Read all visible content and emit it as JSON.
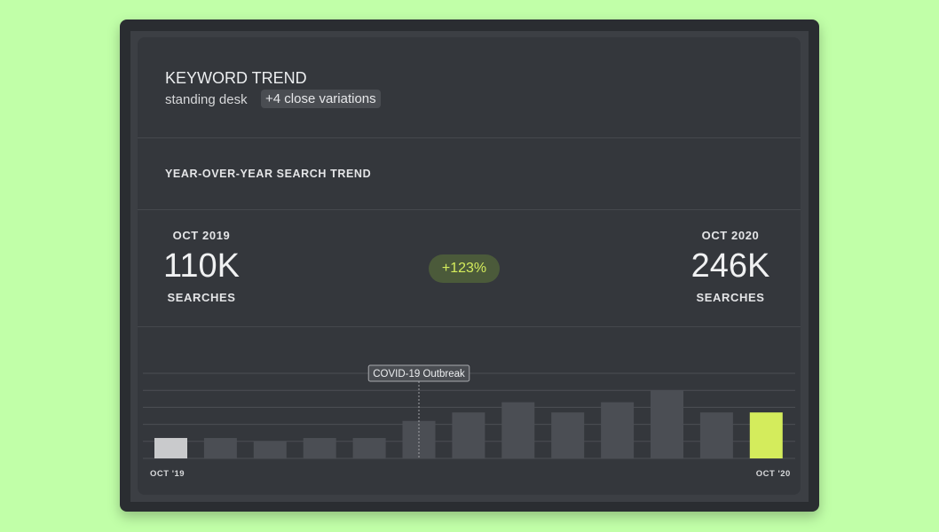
{
  "header": {
    "title": "KEYWORD TREND",
    "keyword": "standing desk",
    "variations": "+4 close variations"
  },
  "section_title": "YEAR-OVER-YEAR SEARCH TREND",
  "comparison": {
    "left": {
      "period": "OCT 2019",
      "value": "110K",
      "unit": "SEARCHES"
    },
    "change": "+123%",
    "right": {
      "period": "OCT 2020",
      "value": "246K",
      "unit": "SEARCHES"
    }
  },
  "chart_data": {
    "type": "bar",
    "categories": [
      "OCT '19",
      null,
      null,
      null,
      null,
      null,
      null,
      null,
      null,
      null,
      null,
      null,
      "OCT '20"
    ],
    "values": [
      1.2,
      1.2,
      1.0,
      1.2,
      1.2,
      2.2,
      2.7,
      3.3,
      2.7,
      3.3,
      4.0,
      2.7,
      2.7
    ],
    "colors": [
      "#c9cacc",
      "#4b4e54",
      "#4b4e54",
      "#4b4e54",
      "#4b4e54",
      "#4b4e54",
      "#4b4e54",
      "#4b4e54",
      "#4b4e54",
      "#4b4e54",
      "#4b4e54",
      "#4b4e54",
      "#d4ec5c"
    ],
    "ylim": [
      0,
      5
    ],
    "yticks": [
      0,
      1,
      2,
      3,
      4,
      5
    ],
    "grid": true,
    "annotation": {
      "text": "COVID-19 Outbreak",
      "index": 5
    }
  }
}
